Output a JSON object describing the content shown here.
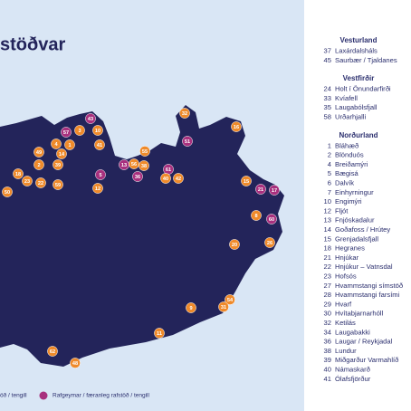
{
  "title": "stöðvar",
  "markers": [
    {
      "label": 43,
      "color": "#a8307e"
    },
    {
      "label": 57,
      "color": "#a8307e"
    },
    {
      "label": 3,
      "color": "#ef8a2a"
    },
    {
      "label": 10,
      "color": "#ef8a2a"
    },
    {
      "label": 4,
      "color": "#ef8a2a"
    },
    {
      "label": 1,
      "color": "#ef8a2a"
    },
    {
      "label": 41,
      "color": "#ef8a2a"
    },
    {
      "label": 49,
      "color": "#ef8a2a"
    },
    {
      "label": 14,
      "color": "#ef8a2a"
    },
    {
      "label": 2,
      "color": "#ef8a2a"
    },
    {
      "label": 39,
      "color": "#ef8a2a"
    },
    {
      "label": 32,
      "color": "#ef8a2a"
    },
    {
      "label": 51,
      "color": "#a8307e"
    },
    {
      "label": 16,
      "color": "#ef8a2a"
    },
    {
      "label": 55,
      "color": "#ef8a2a"
    },
    {
      "label": 13,
      "color": "#a8307e"
    },
    {
      "label": 56,
      "color": "#ef8a2a"
    },
    {
      "label": 38,
      "color": "#ef8a2a"
    },
    {
      "label": 36,
      "color": "#a8307e"
    },
    {
      "label": 61,
      "color": "#a8307e"
    },
    {
      "label": 40,
      "color": "#ef8a2a"
    },
    {
      "label": 42,
      "color": "#ef8a2a"
    },
    {
      "label": 5,
      "color": "#a8307e"
    },
    {
      "label": 12,
      "color": "#ef8a2a"
    },
    {
      "label": 22,
      "color": "#ef8a2a"
    },
    {
      "label": 59,
      "color": "#ef8a2a"
    },
    {
      "label": 18,
      "color": "#ef8a2a"
    },
    {
      "label": 23,
      "color": "#ef8a2a"
    },
    {
      "label": 50,
      "color": "#ef8a2a"
    },
    {
      "label": 15,
      "color": "#ef8a2a"
    },
    {
      "label": 21,
      "color": "#a8307e"
    },
    {
      "label": 17,
      "color": "#a8307e"
    },
    {
      "label": 8,
      "color": "#ef8a2a"
    },
    {
      "label": 60,
      "color": "#a8307e"
    },
    {
      "label": 20,
      "color": "#ef8a2a"
    },
    {
      "label": 26,
      "color": "#ef8a2a"
    },
    {
      "label": 54,
      "color": "#ef8a2a"
    },
    {
      "label": 31,
      "color": "#ef8a2a"
    },
    {
      "label": 9,
      "color": "#ef8a2a"
    },
    {
      "label": 11,
      "color": "#ef8a2a"
    },
    {
      "label": 62,
      "color": "#ef8a2a"
    },
    {
      "label": 48,
      "color": "#ef8a2a"
    }
  ],
  "legend": [
    {
      "label": "öð / tengill",
      "color": "#ef8a2a"
    },
    {
      "label": "Rafgeymar / færanleg rafstöð / tengill",
      "color": "#a8307e"
    }
  ],
  "regions": [
    {
      "name": "Vesturland",
      "items": [
        {
          "number": 37,
          "name": "Laxárdalsháls"
        },
        {
          "number": 45,
          "name": "Saurbær / Tjaldanes"
        }
      ]
    },
    {
      "name": "Vestfirðir",
      "items": [
        {
          "number": 24,
          "name": "Holt í Önundarfirði"
        },
        {
          "number": 33,
          "name": "Kvíafell"
        },
        {
          "number": 35,
          "name": "Laugabólsfjall"
        },
        {
          "number": 58,
          "name": "Urðarhjalli"
        }
      ]
    },
    {
      "name": "Norðurland",
      "items": [
        {
          "number": 1,
          "name": "Bláhæð"
        },
        {
          "number": 2,
          "name": "Blönduós"
        },
        {
          "number": 4,
          "name": "Breiðamýri"
        },
        {
          "number": 5,
          "name": "Bægisá"
        },
        {
          "number": 6,
          "name": "Dalvík"
        },
        {
          "number": 7,
          "name": "Einhyrningur"
        },
        {
          "number": 10,
          "name": "Engimýri"
        },
        {
          "number": 12,
          "name": "Fljót"
        },
        {
          "number": 13,
          "name": "Fnjóskadalur"
        },
        {
          "number": 14,
          "name": "Goðafoss / Hrútey"
        },
        {
          "number": 15,
          "name": "Grenjadalsfjall"
        },
        {
          "number": 18,
          "name": "Hegranes"
        },
        {
          "number": 21,
          "name": "Hnjúkar"
        },
        {
          "number": 22,
          "name": "Hnjúkur – Vatnsdal"
        },
        {
          "number": 23,
          "name": "Hofsós"
        },
        {
          "number": 27,
          "name": "Hvammstangi símstöð"
        },
        {
          "number": 28,
          "name": "Hvammstangi farsími"
        },
        {
          "number": 29,
          "name": "Hvarf"
        },
        {
          "number": 30,
          "name": "Hvítabjarnarhóll"
        },
        {
          "number": 32,
          "name": "Ketilás"
        },
        {
          "number": 34,
          "name": "Laugabakki"
        },
        {
          "number": 36,
          "name": "Laugar / Reykjadal"
        },
        {
          "number": 38,
          "name": "Lundur"
        },
        {
          "number": 39,
          "name": "Miðgarður Varmahlíð"
        },
        {
          "number": 40,
          "name": "Námaskarð"
        },
        {
          "number": 41,
          "name": "Ólafsfjörður"
        }
      ]
    }
  ]
}
